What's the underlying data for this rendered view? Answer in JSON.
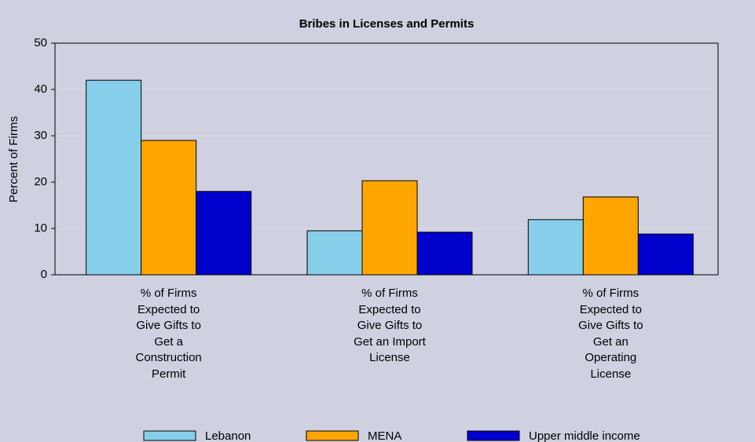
{
  "chart_data": {
    "type": "bar",
    "title": "Bribes in Licenses and Permits",
    "ylabel": "Percent of Firms",
    "categories": [
      "% of Firms Expected to Give Gifts to Get a Construction Permit",
      "% of Firms Expected to Give Gifts to Get an Import License",
      "% of Firms Expected to Give Gifts to Get an Operating License"
    ],
    "series": [
      {
        "name": "Lebanon",
        "color": "#87ceeb",
        "values": [
          42.0,
          9.5,
          11.9
        ]
      },
      {
        "name": "MENA",
        "color": "#ffa500",
        "values": [
          29.0,
          20.3,
          16.8
        ]
      },
      {
        "name": "Upper middle income",
        "color": "#0000cd",
        "values": [
          18.0,
          9.2,
          8.8
        ]
      }
    ],
    "ylim": [
      0,
      50
    ],
    "yticks": [
      0,
      10,
      20,
      30,
      40,
      50
    ],
    "grid": true,
    "legend": "bottom"
  }
}
